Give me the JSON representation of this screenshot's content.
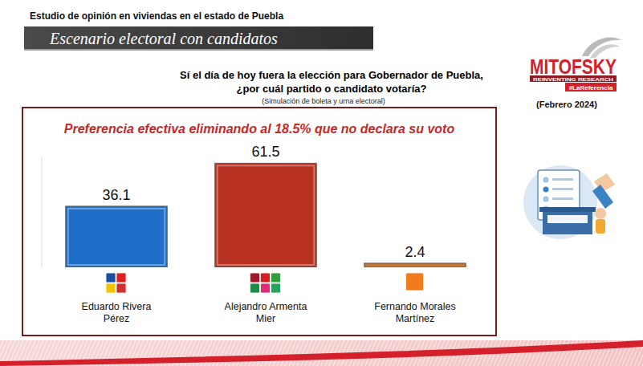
{
  "header": {
    "study": "Estudio de opinión en viviendas en el estado de Puebla",
    "banner": "Escenario electoral con candidatos",
    "question": [
      "Sí el día de hoy fuera la elección para Gobernador de Puebla,",
      "¿por cuál partido o candidato votaría?"
    ],
    "note": "(Simulación de boleta y urna electoral)",
    "date": "(Febrero 2024)",
    "logo": {
      "name": "MITOFSKY",
      "tagline": "REINVENTING RESEARCH",
      "hashtag": "#LaReferencia"
    }
  },
  "chart_data": {
    "type": "bar",
    "title": "Preferencia efectiva eliminando al 18.5% que no declara su voto",
    "categories": [
      "Eduardo Rivera Pérez",
      "Alejandro Armenta Mier",
      "Fernando Morales Martínez"
    ],
    "values": [
      36.1,
      61.5,
      2.4
    ],
    "colors": [
      "#1f6fc9",
      "#b8301f",
      "#c8742c"
    ],
    "ylim": [
      0,
      65
    ],
    "data_labels": true,
    "tick_labels": false,
    "grid": false
  }
}
